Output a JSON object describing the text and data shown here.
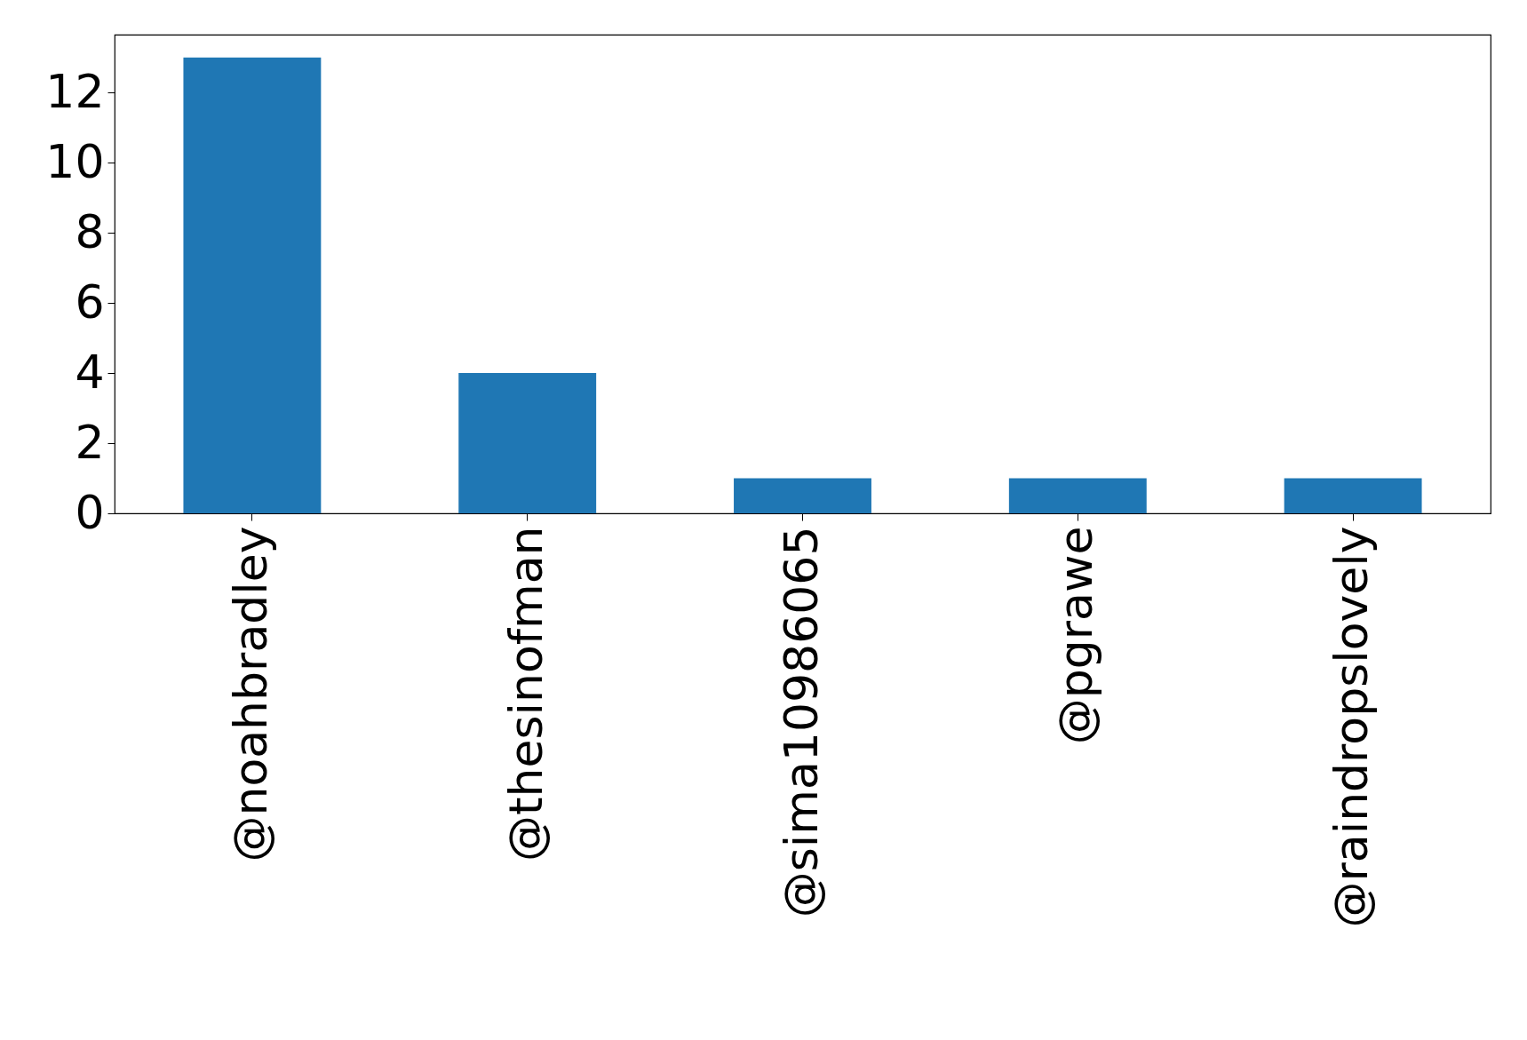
{
  "chart_data": {
    "type": "bar",
    "categories": [
      "@noahbradley",
      "@thesinofman",
      "@sima10986065",
      "@pgrawe",
      "@raindropslovely"
    ],
    "values": [
      13,
      4,
      1,
      1,
      1
    ],
    "color": "#1f77b4",
    "ylim": [
      0,
      13.65
    ],
    "yticks": [
      0,
      2,
      4,
      6,
      8,
      10,
      12
    ],
    "grid": false
  }
}
